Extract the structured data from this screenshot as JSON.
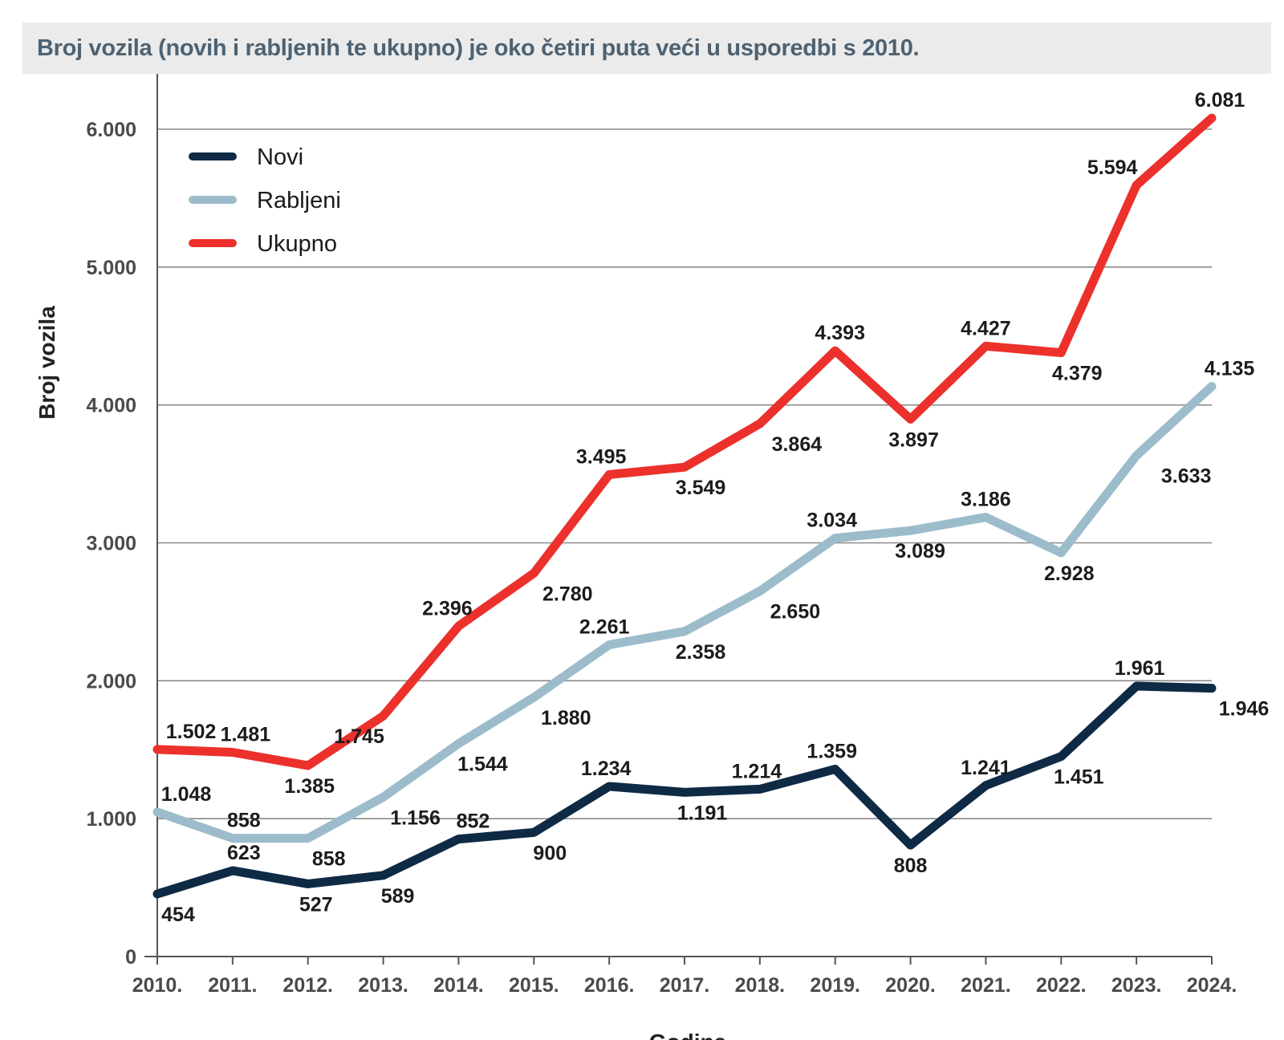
{
  "chart_data": {
    "type": "line",
    "title": "Broj vozila (novih i rabljenih te ukupno) je oko četiri puta veći u usporedbi s 2010.",
    "ylabel": "Broj vozila",
    "xlabel": "Godina",
    "ylim": [
      0,
      6000
    ],
    "yticks": [
      0,
      1000,
      2000,
      3000,
      4000,
      5000,
      6000
    ],
    "ytick_labels": [
      "0",
      "1.000",
      "2.000",
      "3.000",
      "4.000",
      "5.000",
      "6.000"
    ],
    "grid": true,
    "legend_position": "top-left",
    "categories": [
      "2010.",
      "2011.",
      "2012.",
      "2013.",
      "2014.",
      "2015.",
      "2016.",
      "2017.",
      "2018.",
      "2019.",
      "2020.",
      "2021.",
      "2022.",
      "2023.",
      "2024."
    ],
    "series": [
      {
        "name": "Novi",
        "color": "#0e2a45",
        "values": [
          454,
          623,
          527,
          589,
          852,
          900,
          1234,
          1191,
          1214,
          1359,
          808,
          1241,
          1451,
          1961,
          1946
        ],
        "labels": [
          "454",
          "623",
          "527",
          "589",
          "852",
          "900",
          "1.234",
          "1.191",
          "1.214",
          "1.359",
          "808",
          "1.241",
          "1.451",
          "1.961",
          "1.946"
        ]
      },
      {
        "name": "Rabljeni",
        "color": "#9cbccb",
        "values": [
          1048,
          858,
          858,
          1156,
          1544,
          1880,
          2261,
          2358,
          2650,
          3034,
          3089,
          3186,
          2928,
          3633,
          4135
        ],
        "labels": [
          "1.048",
          "858",
          "858",
          "1.156",
          "1.544",
          "1.880",
          "2.261",
          "2.358",
          "2.650",
          "3.034",
          "3.089",
          "3.186",
          "2.928",
          "3.633",
          "4.135"
        ]
      },
      {
        "name": "Ukupno",
        "color": "#ec302b",
        "values": [
          1502,
          1481,
          1385,
          1745,
          2396,
          2780,
          3495,
          3549,
          3864,
          4393,
          3897,
          4427,
          4379,
          5594,
          6081
        ],
        "labels": [
          "1.502",
          "1.481",
          "1.385",
          "1.745",
          "2.396",
          "2.780",
          "3.495",
          "3.549",
          "3.864",
          "4.393",
          "3.897",
          "4.427",
          "4.379",
          "5.594",
          "6.081"
        ]
      }
    ]
  }
}
